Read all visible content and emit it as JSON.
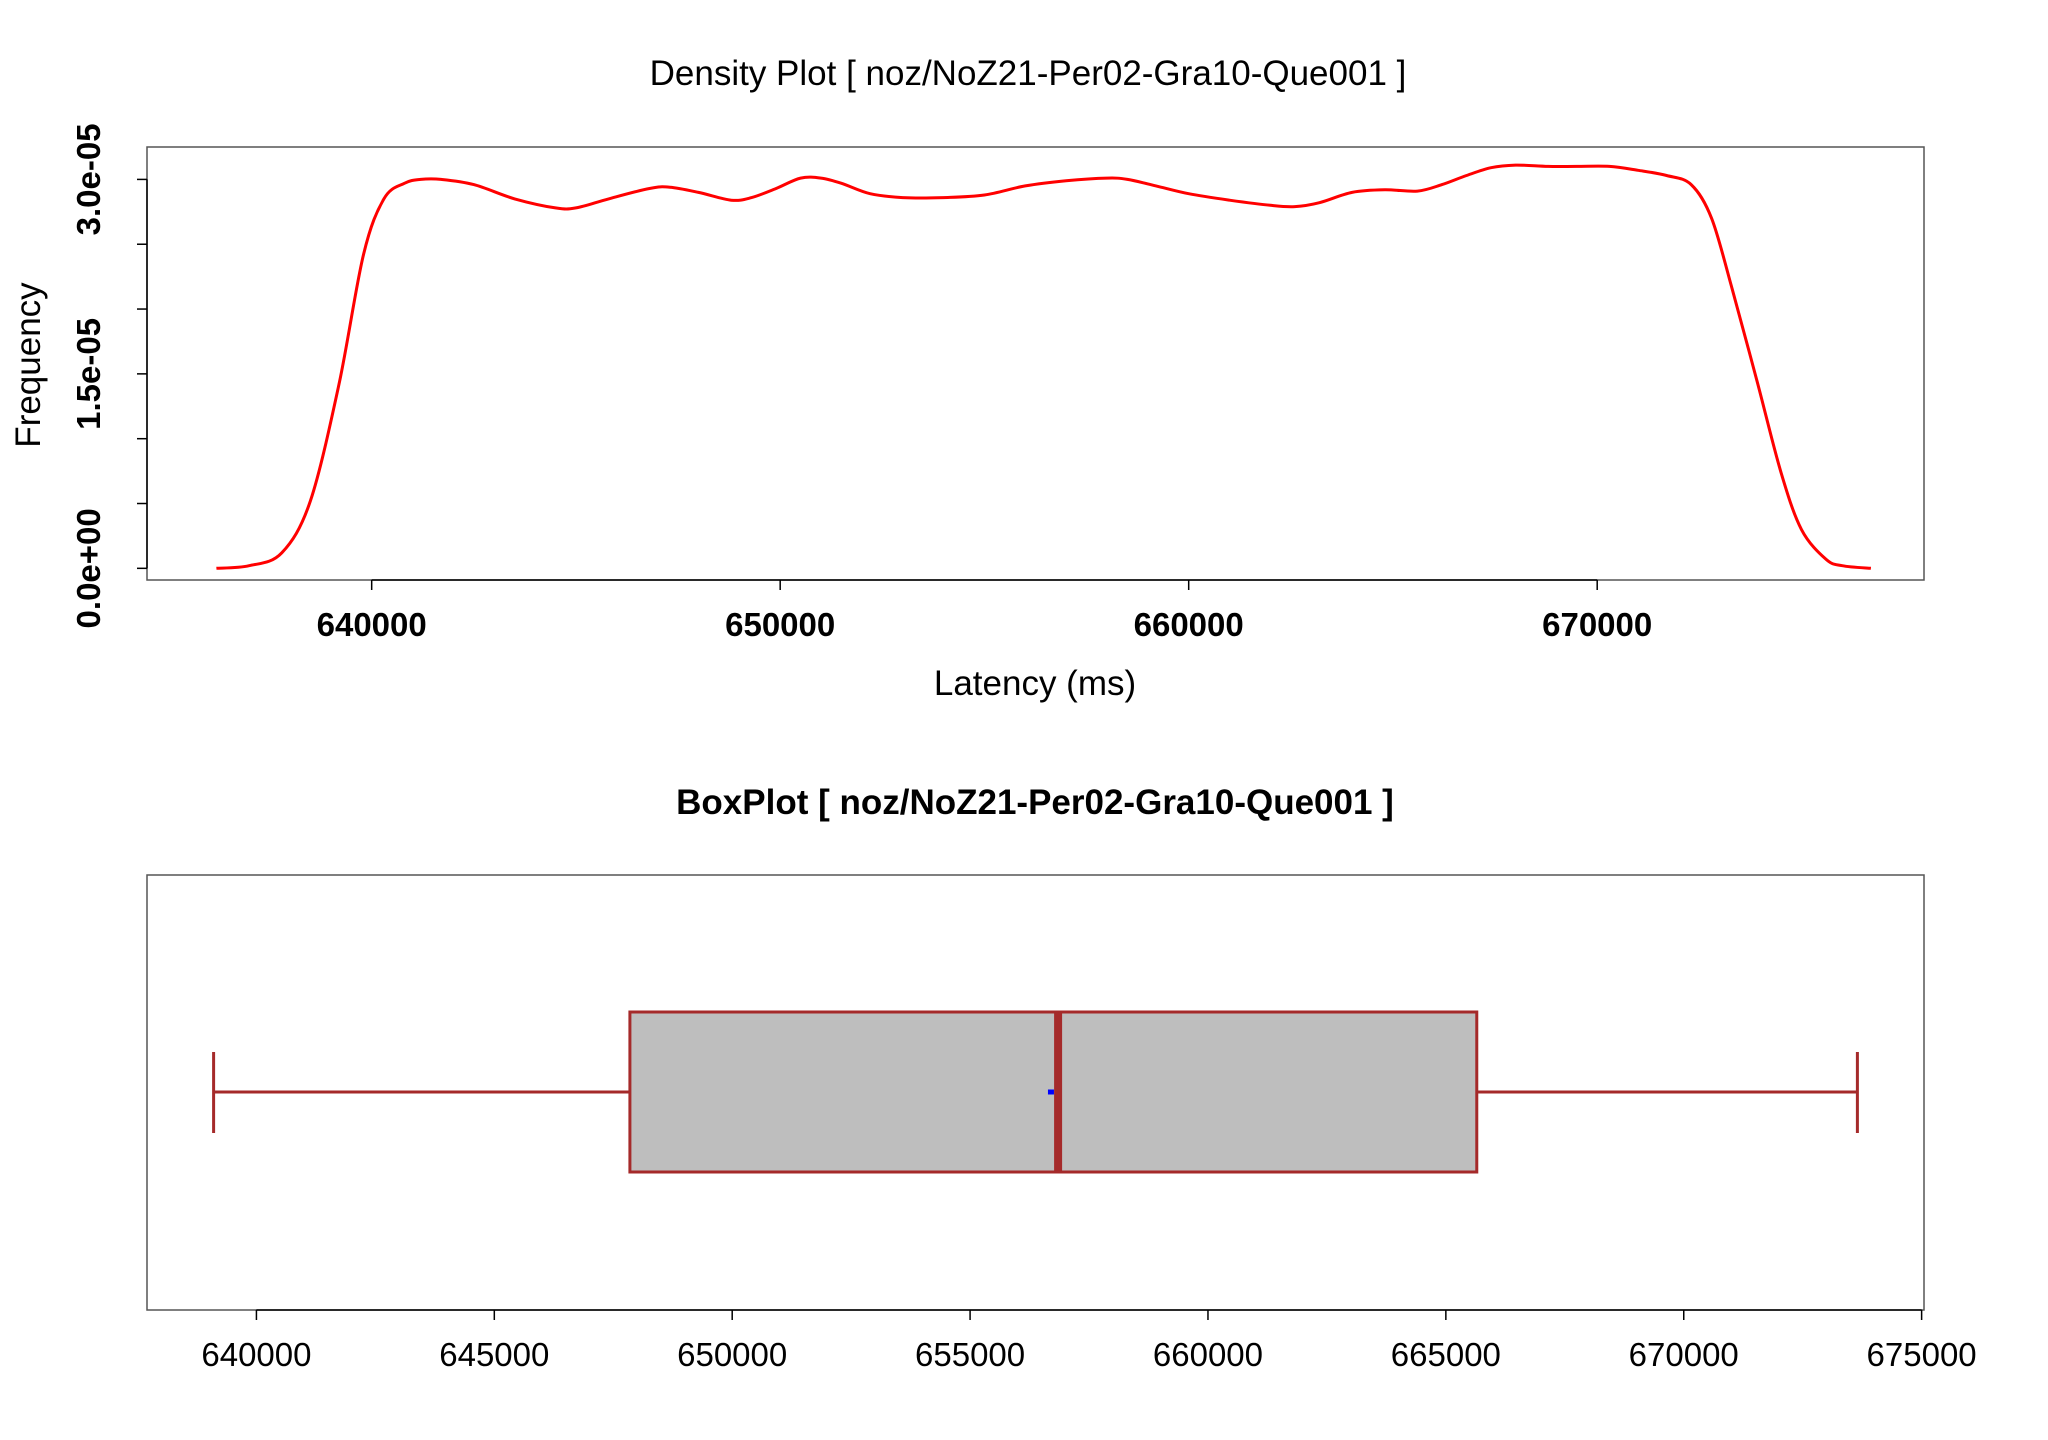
{
  "chart_data": [
    {
      "type": "line",
      "title": "Density Plot [ noz/NoZ21-Per02-Gra10-Que001 ]",
      "xlabel": "Latency (ms)",
      "ylabel": "Frequency",
      "xlim": [
        634500,
        678000
      ],
      "ylim": [
        -9e-07,
        3.25e-05
      ],
      "x_ticks": [
        640000,
        650000,
        660000,
        670000
      ],
      "x_tick_labels": [
        "640000",
        "650000",
        "660000",
        "670000"
      ],
      "y_ticks": [
        0,
        1.5e-05,
        3e-05
      ],
      "y_tick_labels": [
        "0.0e+00",
        "1.5e-05",
        "3.0e-05"
      ],
      "y_minor_ticks": [
        5e-06,
        1e-05,
        2e-05,
        2.5e-05
      ],
      "line_color": "#ff0000",
      "series": [
        {
          "x": [
            636200,
            637000,
            637800,
            638500,
            639200,
            639800,
            640300,
            640800,
            641200,
            641700,
            642500,
            643500,
            644500,
            645000,
            645800,
            646800,
            647300,
            648000,
            648800,
            649300,
            649900,
            650500,
            651000,
            651500,
            652200,
            653000,
            654000,
            655000,
            656000,
            657000,
            658000,
            658500,
            659200,
            660000,
            661000,
            662000,
            662600,
            663200,
            664000,
            664800,
            665600,
            666200,
            666800,
            667400,
            668000,
            668800,
            669500,
            670300,
            671000,
            671700,
            672300,
            672800,
            673300,
            673900,
            674500,
            675000,
            675600,
            676000,
            676700
          ],
          "values": [
            0.0,
            2e-07,
            1.2e-06,
            5.2e-06,
            1.42e-05,
            2.42e-05,
            2.85e-05,
            2.97e-05,
            3e-05,
            3e-05,
            2.96e-05,
            2.85e-05,
            2.78e-05,
            2.78e-05,
            2.85e-05,
            2.93e-05,
            2.94e-05,
            2.9e-05,
            2.84e-05,
            2.86e-05,
            2.93e-05,
            3.01e-05,
            3.01e-05,
            2.97e-05,
            2.89e-05,
            2.86e-05,
            2.86e-05,
            2.88e-05,
            2.95e-05,
            2.99e-05,
            3.01e-05,
            3e-05,
            2.95e-05,
            2.89e-05,
            2.84e-05,
            2.8e-05,
            2.79e-05,
            2.82e-05,
            2.9e-05,
            2.92e-05,
            2.91e-05,
            2.96e-05,
            3.03e-05,
            3.09e-05,
            3.11e-05,
            3.1e-05,
            3.1e-05,
            3.1e-05,
            3.07e-05,
            3.03e-05,
            2.96e-05,
            2.7e-05,
            2.16e-05,
            1.46e-05,
            7.4e-06,
            3e-06,
            7e-07,
            2e-07,
            0.0
          ]
        }
      ]
    },
    {
      "type": "box",
      "title": "BoxPlot [ noz/NoZ21-Per02-Gra10-Que001 ]",
      "xlim": [
        637700,
        675050
      ],
      "x_ticks": [
        640000,
        645000,
        650000,
        655000,
        660000,
        665000,
        670000,
        675000
      ],
      "x_tick_labels": [
        "640000",
        "645000",
        "650000",
        "655000",
        "660000",
        "665000",
        "670000",
        "675000"
      ],
      "whisker_low": 639100,
      "q1": 647850,
      "median": 656850,
      "q3": 665650,
      "whisker_high": 673650,
      "mean": 656700,
      "box_fill": "#bebebe",
      "line_color": "#a52a2a",
      "mean_color": "#0000ff"
    }
  ]
}
